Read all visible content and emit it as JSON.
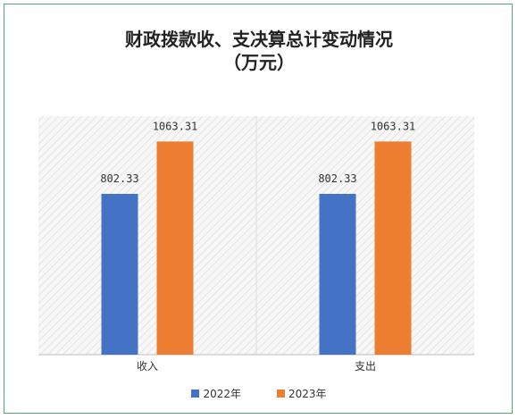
{
  "chart_data": {
    "type": "bar",
    "title": "财政拨款收、支决算总计变动情况",
    "subtitle": "（万元）",
    "categories": [
      "收入",
      "支出"
    ],
    "series": [
      {
        "name": "2022年",
        "values": [
          802.33,
          802.33
        ],
        "labels": [
          "802.33",
          "802.33"
        ],
        "color": "#4472c4"
      },
      {
        "name": "2023年",
        "values": [
          1063.31,
          1063.31
        ],
        "labels": [
          "1063.31",
          "1063.31"
        ],
        "color": "#ed7d31"
      }
    ],
    "ylim": [
      0,
      1200
    ],
    "grid": false,
    "legend_position": "bottom"
  }
}
